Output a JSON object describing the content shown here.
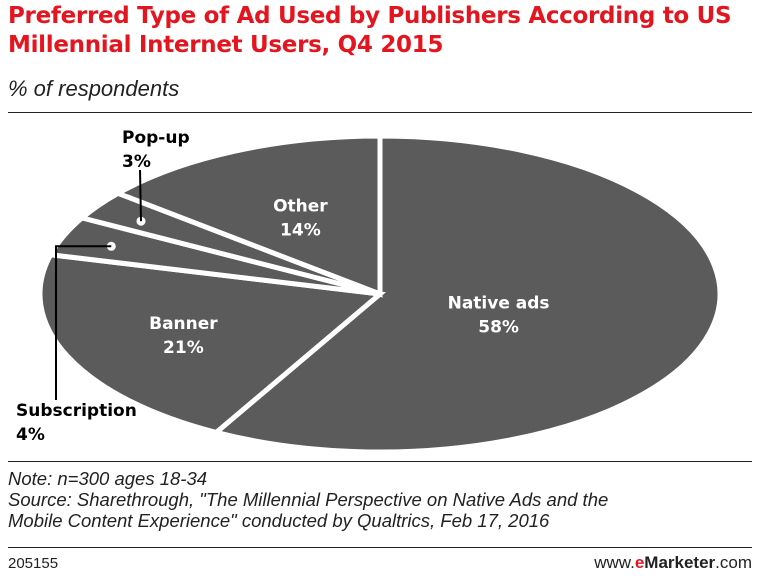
{
  "header": {
    "title": "Preferred Type of Ad Used by Publishers According to US Millennial Internet Users, Q4 2015",
    "subtitle": "% of respondents"
  },
  "chart_data": {
    "type": "pie",
    "title": "Preferred Type of Ad Used by Publishers According to US Millennial Internet Users, Q4 2015",
    "subtitle": "% of respondents",
    "categories": [
      "Native ads",
      "Banner",
      "Subscription",
      "Pop-up",
      "Other"
    ],
    "values": [
      58,
      21,
      4,
      3,
      14
    ],
    "value_labels": [
      "58%",
      "21%",
      "4%",
      "3%",
      "14%"
    ],
    "unit": "%",
    "colors": {
      "slice": "#5b5b5b",
      "separator": "#ffffff",
      "label_inside": "#ffffff",
      "label_outside": "#000000"
    }
  },
  "footer": {
    "note": "Note: n=300 ages 18-34",
    "source_line1": "Source: Sharethrough, \"The Millennial Perspective on Native Ads and the",
    "source_line2": "Mobile Content Experience\" conducted by Qualtrics, Feb 17, 2016",
    "chart_id": "205155",
    "brand_prefix": "www.",
    "brand_e": "e",
    "brand_name": "Marketer",
    "brand_suffix": ".com"
  },
  "colors": {
    "accent": "#e4151f",
    "text": "#222222"
  }
}
